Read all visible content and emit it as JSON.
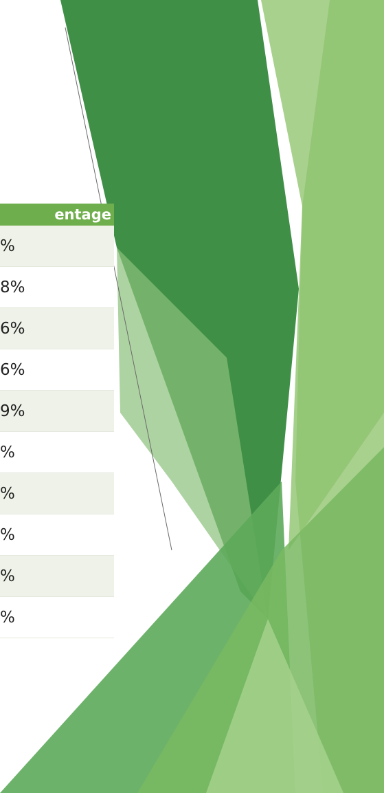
{
  "table": {
    "header": "entage",
    "rows": [
      "%",
      "8%",
      "6%",
      "6%",
      "9%",
      "%",
      "%",
      "%",
      "%",
      "%"
    ]
  }
}
